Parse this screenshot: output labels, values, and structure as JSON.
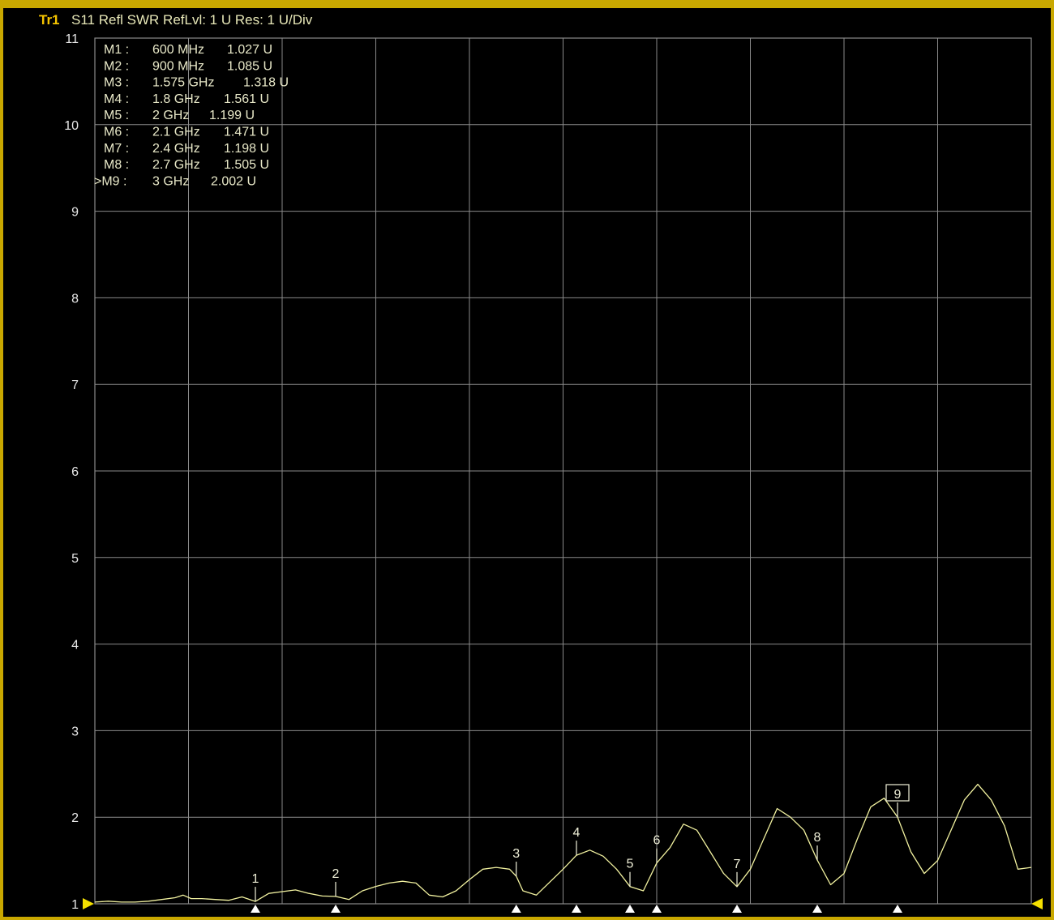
{
  "header": {
    "trace_id": "Tr1",
    "trace_desc": "S11 Refl SWR RefLvl: 1  U Res: 1  U/Div"
  },
  "colors": {
    "background": "#000000",
    "frame": "#c9a800",
    "grid": "#8a8a8a",
    "trace": "#f2f2a0",
    "marker_text": "#e8e8c8",
    "reference_arrow": "#f5e000"
  },
  "markers": [
    {
      "label": "M1 :",
      "freq": "600 MHz",
      "value": "1.027  U",
      "active": false
    },
    {
      "label": "M2 :",
      "freq": "900 MHz",
      "value": "1.085  U",
      "active": false
    },
    {
      "label": "M3 :",
      "freq": "1.575 GHz",
      "value": "1.318  U",
      "active": false
    },
    {
      "label": "M4 :",
      "freq": "1.8 GHz",
      "value": "1.561  U",
      "active": false
    },
    {
      "label": "M5 :",
      "freq": "2 GHz",
      "value": "1.199  U",
      "active": false
    },
    {
      "label": "M6 :",
      "freq": "2.1 GHz",
      "value": "1.471  U",
      "active": false
    },
    {
      "label": "M7 :",
      "freq": "2.4 GHz",
      "value": "1.198  U",
      "active": false
    },
    {
      "label": "M8 :",
      "freq": "2.7 GHz",
      "value": "1.505  U",
      "active": false
    },
    {
      "label": ">M9 :",
      "freq": "3 GHz",
      "value": "2.002  U",
      "active": true
    }
  ],
  "chart_data": {
    "type": "line",
    "title": "",
    "xlabel": "",
    "ylabel": "",
    "ylim": [
      1,
      11
    ],
    "y_ticks": [
      "1",
      "2",
      "3",
      "4",
      "5",
      "6",
      "7",
      "8",
      "9",
      "10",
      "11"
    ],
    "x_divisions": 10,
    "grid": true,
    "x_unit": "GHz",
    "x_range_estimated": [
      0,
      3.5
    ],
    "series": [
      {
        "x": [
          0.0,
          0.05,
          0.1,
          0.15,
          0.2,
          0.25,
          0.3,
          0.33,
          0.36,
          0.4,
          0.45,
          0.5,
          0.55,
          0.6,
          0.65,
          0.7,
          0.75,
          0.8,
          0.85,
          0.9,
          0.95,
          1.0,
          1.05,
          1.1,
          1.15,
          1.2,
          1.25,
          1.3,
          1.35,
          1.4,
          1.45,
          1.5,
          1.55,
          1.575,
          1.6,
          1.65,
          1.7,
          1.75,
          1.8,
          1.85,
          1.9,
          1.95,
          2.0,
          2.05,
          2.1,
          2.15,
          2.2,
          2.25,
          2.3,
          2.35,
          2.4,
          2.45,
          2.5,
          2.55,
          2.6,
          2.65,
          2.7,
          2.75,
          2.8,
          2.85,
          2.9,
          2.95,
          3.0,
          3.05,
          3.1,
          3.15,
          3.2,
          3.25,
          3.3,
          3.35,
          3.4,
          3.45,
          3.5
        ],
        "y": [
          1.02,
          1.03,
          1.02,
          1.02,
          1.03,
          1.05,
          1.07,
          1.1,
          1.06,
          1.06,
          1.05,
          1.04,
          1.08,
          1.027,
          1.12,
          1.14,
          1.16,
          1.12,
          1.09,
          1.085,
          1.05,
          1.15,
          1.2,
          1.24,
          1.26,
          1.24,
          1.1,
          1.08,
          1.15,
          1.28,
          1.4,
          1.42,
          1.4,
          1.318,
          1.15,
          1.1,
          1.25,
          1.4,
          1.561,
          1.62,
          1.55,
          1.4,
          1.199,
          1.15,
          1.471,
          1.65,
          1.92,
          1.85,
          1.6,
          1.35,
          1.198,
          1.4,
          1.75,
          2.1,
          2.0,
          1.85,
          1.505,
          1.22,
          1.35,
          1.75,
          2.12,
          2.22,
          2.002,
          1.6,
          1.35,
          1.5,
          1.85,
          2.2,
          2.38,
          2.2,
          1.9,
          1.4,
          1.42
        ]
      }
    ],
    "marker_points": [
      {
        "n": "1",
        "x": 0.6,
        "y": 1.027
      },
      {
        "n": "2",
        "x": 0.9,
        "y": 1.085
      },
      {
        "n": "3",
        "x": 1.575,
        "y": 1.318
      },
      {
        "n": "4",
        "x": 1.8,
        "y": 1.561
      },
      {
        "n": "5",
        "x": 2.0,
        "y": 1.199
      },
      {
        "n": "6",
        "x": 2.1,
        "y": 1.471
      },
      {
        "n": "7",
        "x": 2.4,
        "y": 1.198
      },
      {
        "n": "8",
        "x": 2.7,
        "y": 1.505
      },
      {
        "n": "9",
        "x": 3.0,
        "y": 2.002
      }
    ]
  }
}
